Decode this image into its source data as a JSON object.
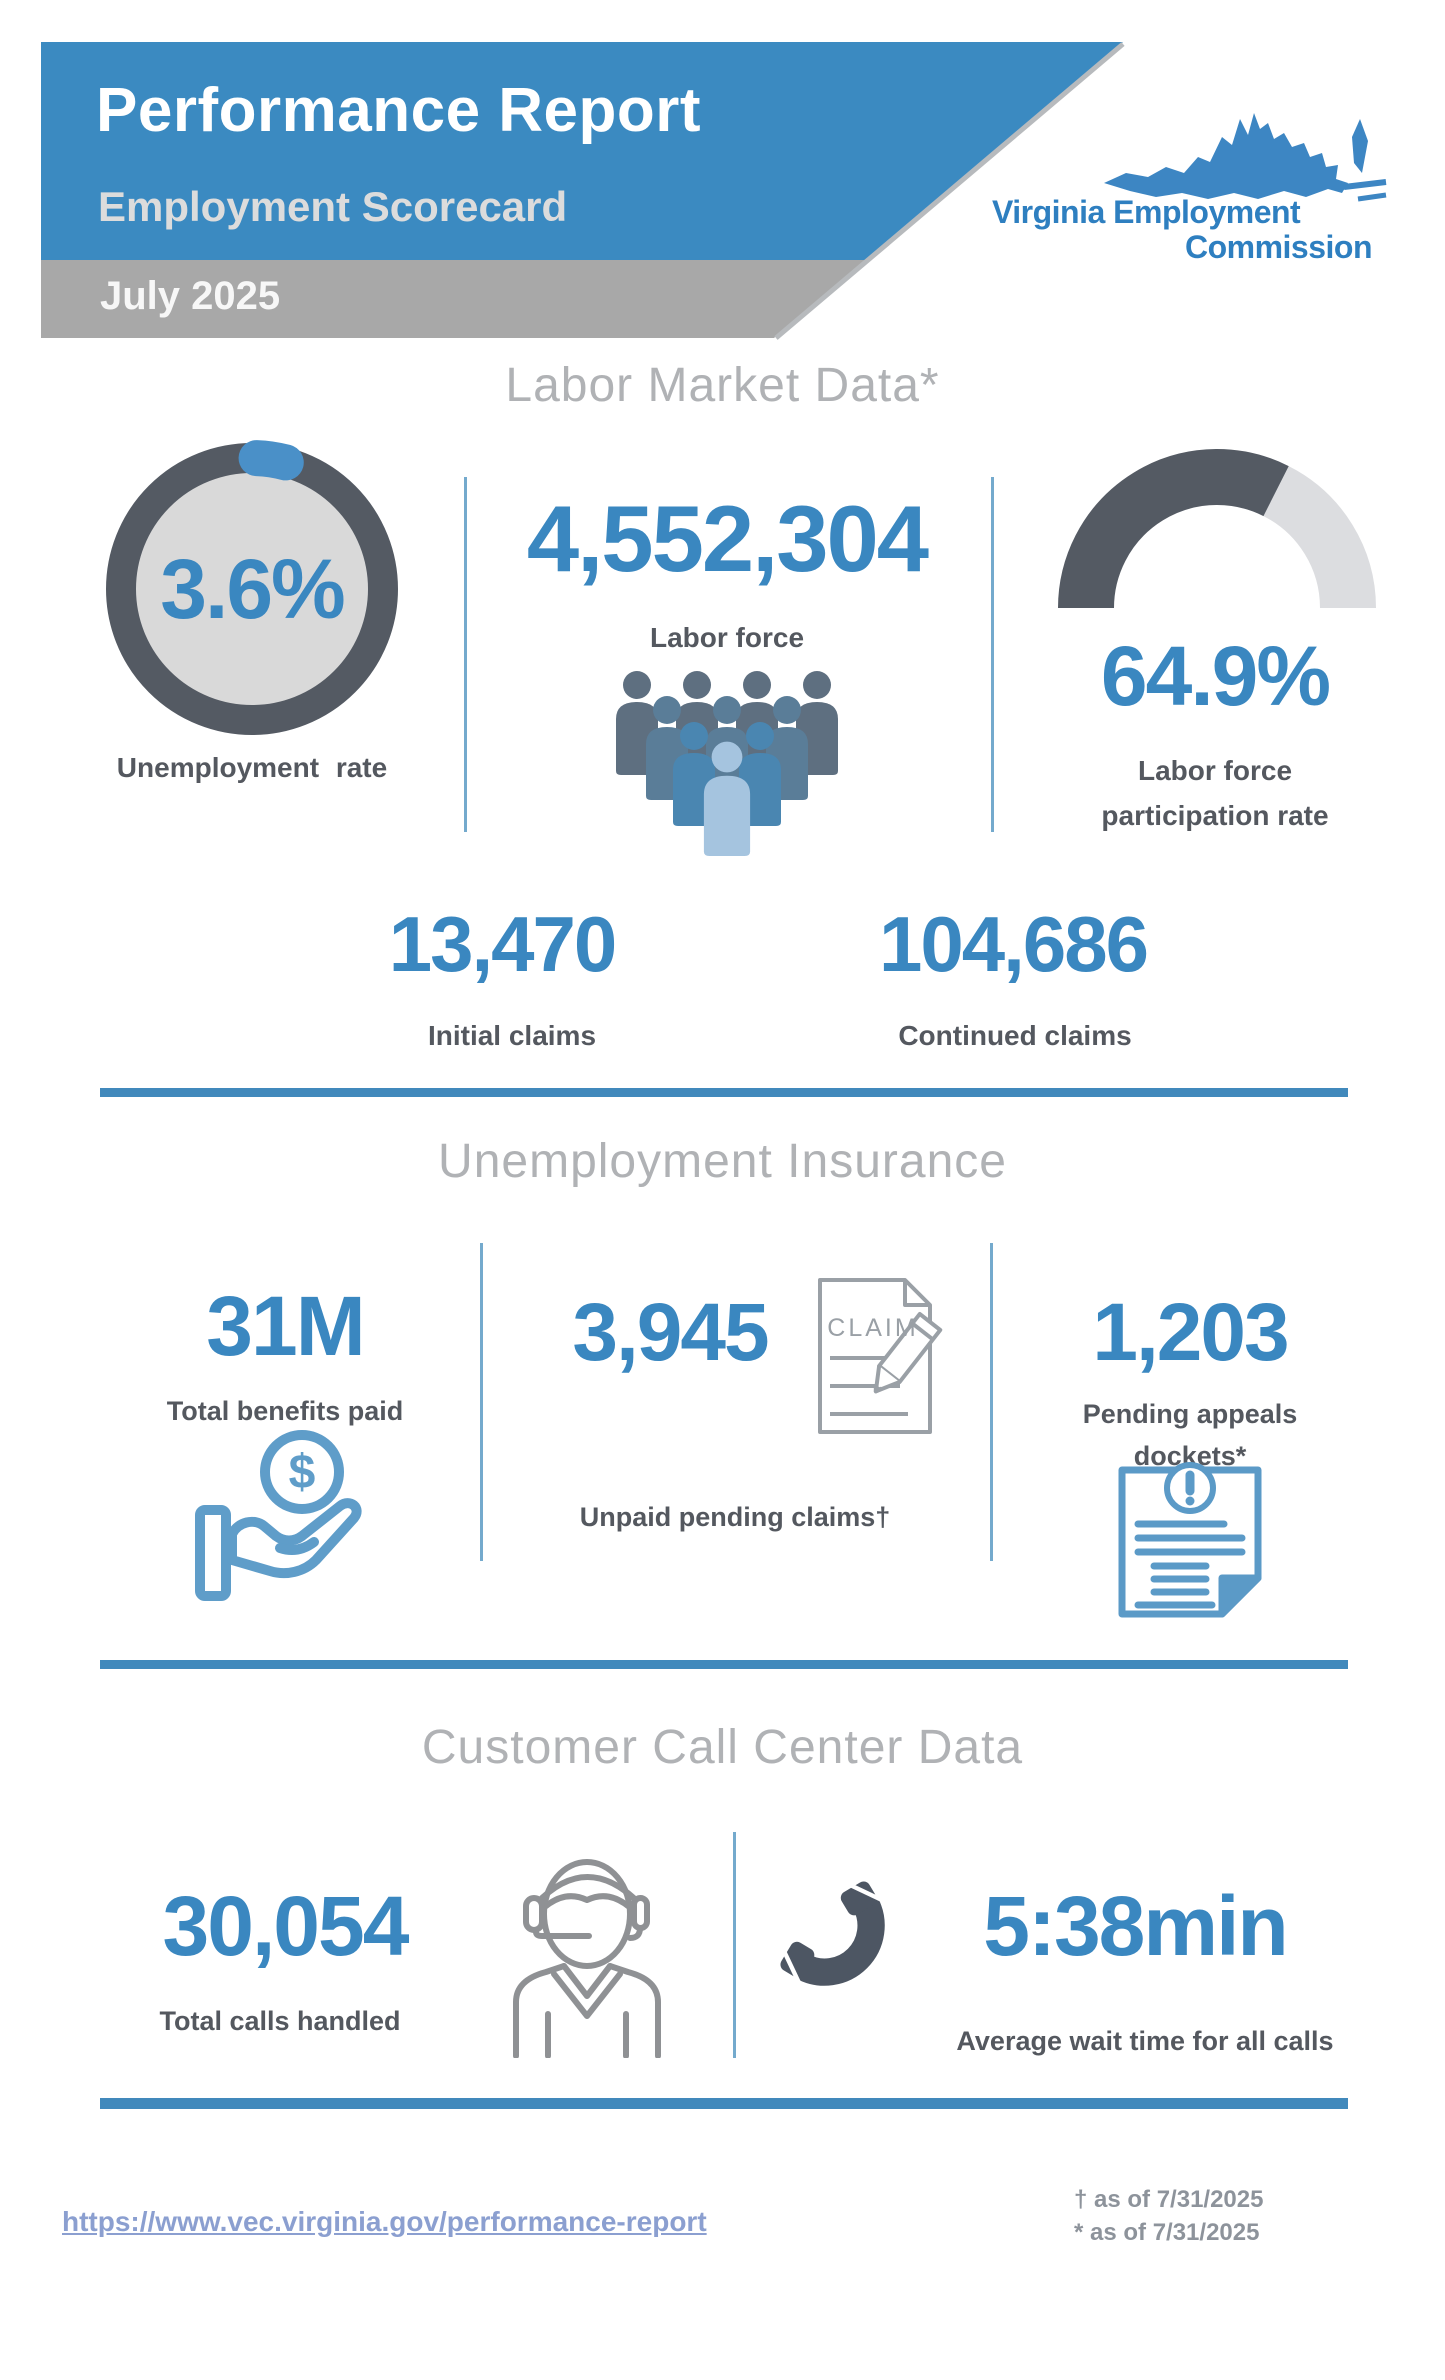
{
  "colors": {
    "banner_blue": "#3b8ac1",
    "bar_gray": "#a8a8a8",
    "number_blue": "#3a87c0",
    "heading_gray": "#b0b2b5",
    "label_gray": "#54585f",
    "divider_blue": "#4189bc",
    "gauge_dark": "#545a63",
    "gauge_light": "#dcdde0",
    "icon_blue": "#5f9dc9",
    "icon_gray": "#9aa0a6",
    "phone_dark": "#4d5663",
    "link_blue": "#8b9fd0"
  },
  "header": {
    "title": "Performance Report",
    "subtitle": "Employment Scorecard",
    "date": "July 2025",
    "logo_line1": "Virginia Employment",
    "logo_line2": "Commission"
  },
  "labor_market": {
    "heading": "Labor Market Data*",
    "unemployment": {
      "value": "3.6%",
      "label": "Unemployment rate",
      "percent": 3.6
    },
    "labor_force": {
      "value": "4,552,304",
      "label": "Labor force"
    },
    "participation": {
      "value": "64.9%",
      "label_line1": "Labor force",
      "label_line2": "participation rate",
      "percent": 64.9
    },
    "initial_claims": {
      "value": "13,470",
      "label": "Initial claims"
    },
    "continued_claims": {
      "value": "104,686",
      "label": "Continued claims"
    }
  },
  "unemployment_insurance": {
    "heading": "Unemployment Insurance",
    "benefits": {
      "value": "31M",
      "label": "Total benefits paid",
      "coin_symbol": "$"
    },
    "unpaid": {
      "value": "3,945",
      "label": "Unpaid pending claims†",
      "icon_text": "CLAIM"
    },
    "appeals": {
      "value": "1,203",
      "label_line1": "Pending appeals",
      "label_line2": "dockets*"
    }
  },
  "call_center": {
    "heading": "Customer Call Center Data",
    "calls": {
      "value": "30,054",
      "label": "Total calls handled"
    },
    "wait": {
      "value": "5:38min",
      "label": "Average wait time for all calls"
    }
  },
  "footer": {
    "link_text": "https://www.vec.virginia.gov/performance-report",
    "link_href": "https://www.vec.virginia.gov/performance-report",
    "note_dagger": "† as of 7/31/2025",
    "note_star": "* as of 7/31/2025"
  }
}
